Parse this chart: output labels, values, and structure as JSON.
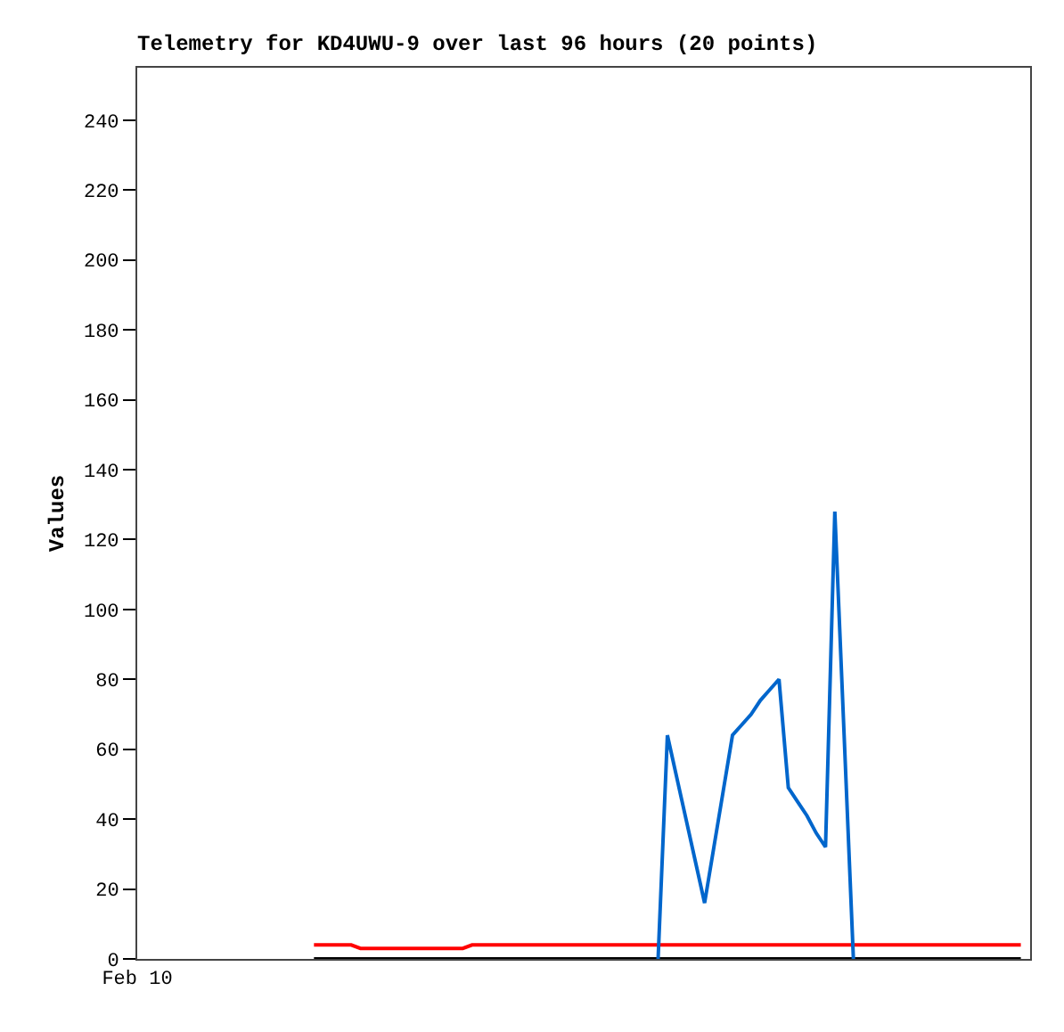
{
  "chart_data": {
    "type": "line",
    "title": "Telemetry for KD4UWU-9 over last 96 hours (20 points)",
    "ylabel": "Values",
    "ylim": [
      0,
      255
    ],
    "yticks": [
      0,
      20,
      40,
      60,
      80,
      100,
      120,
      140,
      160,
      180,
      200,
      220,
      240
    ],
    "grid": false,
    "marker": "none",
    "line_style": "solid",
    "categories": [
      "Feb 10",
      null,
      null,
      null,
      null,
      null,
      null,
      null,
      null,
      null,
      null,
      null,
      null,
      null,
      null,
      null,
      null,
      null,
      null,
      null,
      null,
      null,
      null,
      null,
      null,
      null,
      null,
      null,
      null,
      null,
      null,
      null,
      null,
      null,
      null,
      null,
      null,
      null,
      null,
      null,
      null,
      null,
      null,
      null,
      null,
      null,
      null,
      null,
      null,
      null,
      null,
      null,
      null,
      null,
      null,
      null,
      null,
      null,
      null,
      null,
      null,
      null,
      null,
      null,
      null,
      null,
      null,
      null,
      null,
      null,
      null,
      null,
      null,
      null,
      null,
      null,
      null,
      null,
      null,
      null,
      null,
      null,
      null,
      null,
      null,
      null,
      null,
      null,
      null,
      null,
      null,
      null,
      null,
      null,
      null,
      null,
      null
    ],
    "series": [
      {
        "color": "#ff0000",
        "values": [
          null,
          null,
          null,
          null,
          null,
          null,
          null,
          null,
          null,
          null,
          null,
          null,
          null,
          null,
          null,
          null,
          null,
          null,
          null,
          4,
          4,
          4,
          4,
          4,
          3,
          3,
          3,
          3,
          3,
          3,
          3,
          3,
          3,
          3,
          3,
          3,
          4,
          4,
          4,
          4,
          4,
          4,
          4,
          4,
          4,
          4,
          4,
          4,
          4,
          4,
          4,
          4,
          4,
          4,
          4,
          4,
          4,
          4,
          4,
          4,
          4,
          4,
          4,
          4,
          4,
          4,
          4,
          4,
          4,
          4,
          4,
          4,
          4,
          4,
          4,
          4,
          4,
          4,
          4,
          4,
          4,
          4,
          4,
          4,
          4,
          4,
          4,
          4,
          4,
          4,
          4,
          4,
          4,
          4,
          4,
          4,
          null
        ]
      },
      {
        "color": "#000000",
        "values": [
          null,
          null,
          null,
          null,
          null,
          null,
          null,
          null,
          null,
          null,
          null,
          null,
          null,
          null,
          null,
          null,
          null,
          null,
          null,
          0,
          0,
          0,
          0,
          0,
          0,
          0,
          0,
          0,
          0,
          0,
          0,
          0,
          0,
          0,
          0,
          0,
          0,
          0,
          0,
          0,
          0,
          0,
          0,
          0,
          0,
          0,
          0,
          0,
          0,
          0,
          0,
          0,
          0,
          0,
          0,
          0,
          0,
          0,
          0,
          0,
          0,
          0,
          0,
          0,
          0,
          0,
          0,
          0,
          0,
          0,
          0,
          0,
          0,
          0,
          0,
          0,
          0,
          0,
          0,
          0,
          0,
          0,
          0,
          0,
          0,
          0,
          0,
          0,
          0,
          0,
          0,
          0,
          0,
          0,
          0,
          0,
          null
        ]
      },
      {
        "color": "#0066cc",
        "values": [
          null,
          null,
          null,
          null,
          null,
          null,
          null,
          null,
          null,
          null,
          null,
          null,
          null,
          null,
          null,
          null,
          null,
          null,
          null,
          null,
          null,
          null,
          null,
          null,
          null,
          null,
          null,
          null,
          null,
          null,
          null,
          null,
          null,
          null,
          null,
          null,
          null,
          null,
          null,
          null,
          null,
          null,
          null,
          null,
          null,
          null,
          null,
          null,
          null,
          null,
          null,
          null,
          null,
          null,
          null,
          null,
          0,
          64,
          52,
          40,
          28,
          16,
          32,
          48,
          64,
          67,
          70,
          74,
          77,
          80,
          49,
          45,
          41,
          36,
          32,
          128,
          64,
          0,
          null,
          null,
          null,
          null,
          null,
          null,
          null,
          null,
          null,
          null,
          null,
          null,
          null,
          null,
          null,
          null,
          null,
          null,
          null
        ]
      }
    ]
  }
}
